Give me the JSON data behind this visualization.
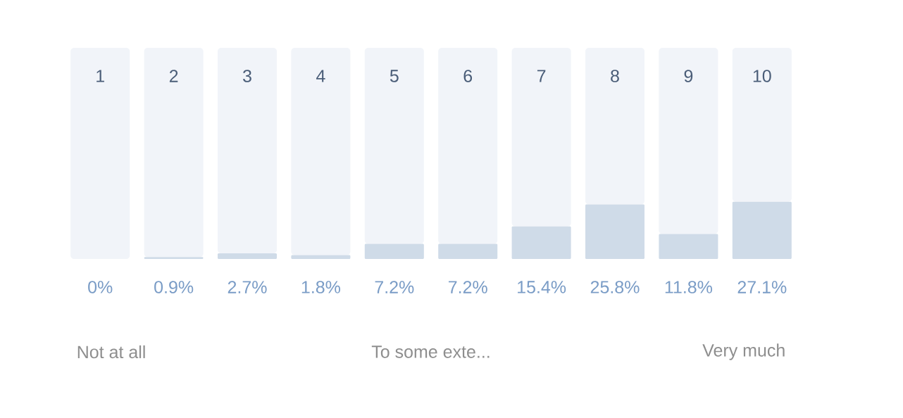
{
  "chart_data": {
    "type": "bar",
    "stacked": true,
    "categories": [
      "1",
      "2",
      "3",
      "4",
      "5",
      "6",
      "7",
      "8",
      "9",
      "10"
    ],
    "series": [
      {
        "color": "#cfdbe8",
        "values": [
          0,
          0.9,
          2.7,
          1.8,
          7.2,
          7.2,
          15.4,
          25.8,
          11.8,
          27.1
        ],
        "value_labels": [
          "0%",
          "0.9%",
          "2.7%",
          "1.8%",
          "7.2%",
          "7.2%",
          "15.4%",
          "25.8%",
          "11.8%",
          "27.1%"
        ]
      },
      {
        "color": "#f1f4f9",
        "values": [
          100,
          99.1,
          97.3,
          98.2,
          92.8,
          92.8,
          84.6,
          74.2,
          88.2,
          72.9
        ]
      }
    ],
    "ylim": [
      0,
      100
    ],
    "annotations": [
      "Not at all",
      "To some exte...",
      "Very much"
    ]
  }
}
